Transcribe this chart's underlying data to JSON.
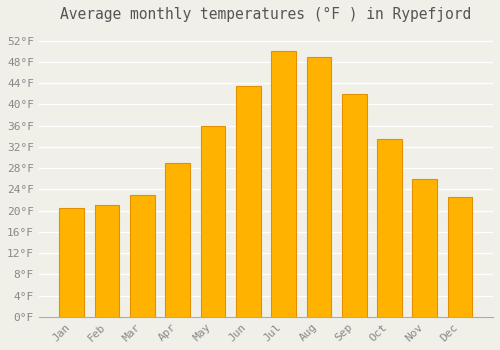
{
  "title": "Average monthly temperatures (°F ) in Rypefjord",
  "months": [
    "Jan",
    "Feb",
    "Mar",
    "Apr",
    "May",
    "Jun",
    "Jul",
    "Aug",
    "Sep",
    "Oct",
    "Nov",
    "Dec"
  ],
  "values": [
    20.5,
    21.0,
    23.0,
    29.0,
    36.0,
    43.5,
    50.0,
    49.0,
    42.0,
    33.5,
    26.0,
    22.5
  ],
  "bar_color_bottom": "#FFB300",
  "bar_color_top": "#FFA000",
  "bar_edge_color": "#E09000",
  "ylim": [
    0,
    54
  ],
  "yticks": [
    0,
    4,
    8,
    12,
    16,
    20,
    24,
    28,
    32,
    36,
    40,
    44,
    48,
    52
  ],
  "ytick_labels": [
    "0°F",
    "4°F",
    "8°F",
    "12°F",
    "16°F",
    "20°F",
    "24°F",
    "28°F",
    "32°F",
    "36°F",
    "40°F",
    "44°F",
    "48°F",
    "52°F"
  ],
  "background_color": "#f0f0e8",
  "grid_color": "#ffffff",
  "title_fontsize": 10.5,
  "tick_fontsize": 8,
  "font_family": "monospace"
}
